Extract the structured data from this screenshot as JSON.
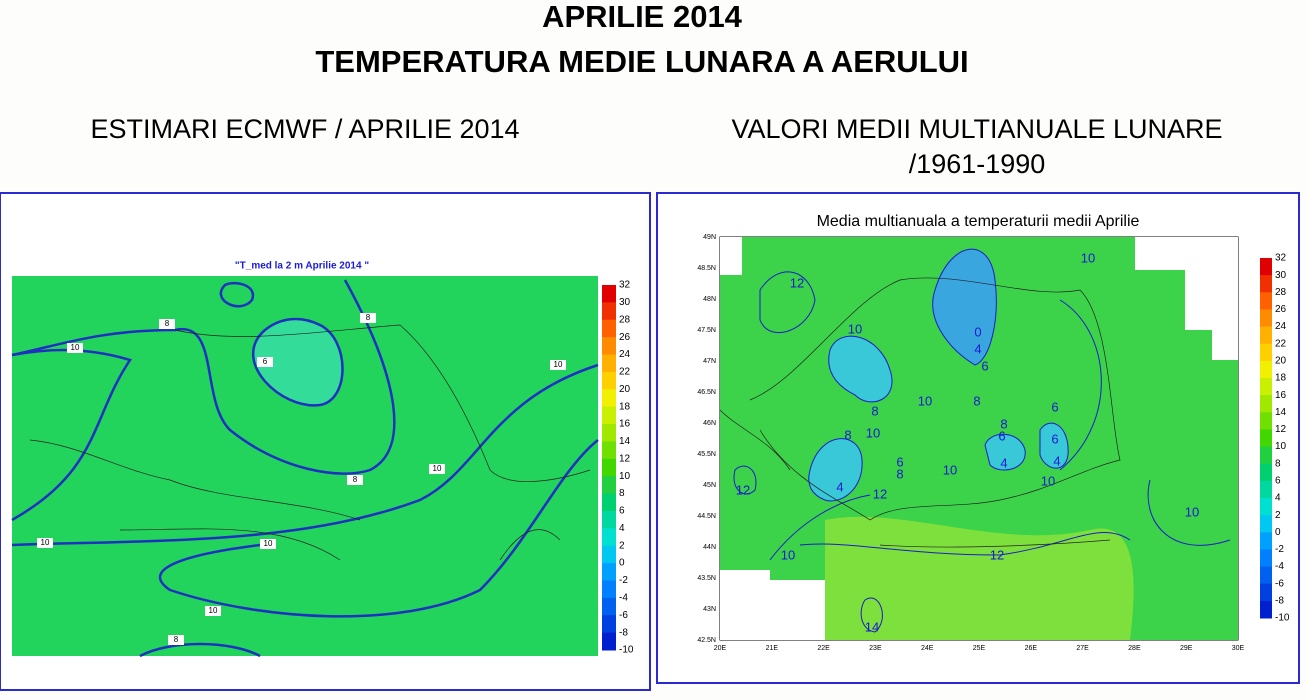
{
  "header": {
    "title_line1": "APRILIE 2014",
    "title_line2": "TEMPERATURA MEDIE LUNARA A AERULUI"
  },
  "left": {
    "heading": "ESTIMARI ECMWF / APRILIE 2014",
    "map_title": "\"T_med la 2 m Aprilie 2014 \"",
    "colorbar": [
      32,
      30,
      28,
      26,
      24,
      22,
      20,
      18,
      16,
      14,
      12,
      10,
      8,
      6,
      4,
      2,
      0,
      -2,
      -4,
      -6,
      -8,
      -10
    ],
    "contour_labels": [
      10,
      8,
      8,
      6,
      10,
      8,
      10,
      10,
      10,
      10,
      8
    ]
  },
  "right": {
    "heading_line1": "VALORI MEDII MULTIANUALE LUNARE",
    "heading_line2": "/1961-1990",
    "map_title": "Media multianuala a temperaturii medii Aprilie",
    "lat_labels": [
      "49N",
      "48.5N",
      "48N",
      "47.5N",
      "47N",
      "46.5N",
      "46N",
      "45.5N",
      "45N",
      "44.5N",
      "44N",
      "43.5N",
      "43N",
      "42.5N"
    ],
    "lon_labels": [
      "20E",
      "21E",
      "22E",
      "23E",
      "24E",
      "25E",
      "26E",
      "27E",
      "28E",
      "29E",
      "30E"
    ],
    "colorbar": [
      32,
      30,
      28,
      26,
      24,
      22,
      20,
      18,
      16,
      14,
      12,
      10,
      8,
      6,
      4,
      2,
      0,
      -2,
      -4,
      -6,
      -8,
      -10
    ],
    "contour_labels": [
      12,
      10,
      10,
      10,
      8,
      8,
      10,
      8,
      6,
      8,
      6,
      6,
      6,
      8,
      10,
      4,
      4,
      10,
      12,
      4,
      12,
      10,
      12,
      10,
      14,
      0,
      4,
      6
    ]
  }
}
